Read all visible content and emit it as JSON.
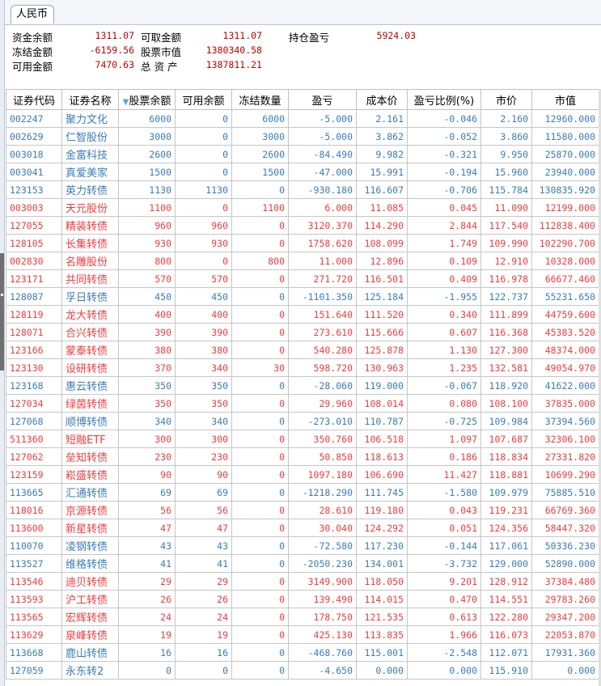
{
  "tab": {
    "label": "人民币"
  },
  "summary": [
    {
      "label": "资金余额",
      "value": "1311.07"
    },
    {
      "label": "冻结金额",
      "value": "-6159.56"
    },
    {
      "label": "可用金额",
      "value": "7470.63"
    },
    {
      "label": "可取金额",
      "value": "1311.07"
    },
    {
      "label": "股票市值",
      "value": "1380340.58"
    },
    {
      "label": "总 资 产",
      "value": "1387811.21"
    },
    {
      "label": "持仓盈亏",
      "value": "5924.03"
    }
  ],
  "colors": {
    "up": "#f03c3c",
    "down": "#3a7cb8",
    "summary_value": "#c00000"
  },
  "table": {
    "sort_icon": "triangle-down",
    "columns": [
      "证券代码",
      "证券名称",
      "股票余额",
      "可用余额",
      "冻结数量",
      "盈亏",
      "成本价",
      "盈亏比例(%)",
      "市价",
      "市值"
    ],
    "rows": [
      [
        "002247",
        "聚力文化",
        "6000",
        "0",
        "6000",
        "-5.000",
        "2.161",
        "-0.046",
        "2.160",
        "12960.000"
      ],
      [
        "002629",
        "仁智股份",
        "3000",
        "0",
        "3000",
        "-5.000",
        "3.862",
        "-0.052",
        "3.860",
        "11580.000"
      ],
      [
        "003018",
        "金富科技",
        "2600",
        "0",
        "2600",
        "-84.490",
        "9.982",
        "-0.321",
        "9.950",
        "25870.000"
      ],
      [
        "003041",
        "真爱美家",
        "1500",
        "0",
        "1500",
        "-47.000",
        "15.991",
        "-0.194",
        "15.960",
        "23940.000"
      ],
      [
        "123153",
        "英力转债",
        "1130",
        "1130",
        "0",
        "-930.180",
        "116.607",
        "-0.706",
        "115.784",
        "130835.920"
      ],
      [
        "003003",
        "天元股份",
        "1100",
        "0",
        "1100",
        "6.000",
        "11.085",
        "0.045",
        "11.090",
        "12199.000"
      ],
      [
        "127055",
        "精装转债",
        "960",
        "960",
        "0",
        "3120.370",
        "114.290",
        "2.844",
        "117.540",
        "112838.400"
      ],
      [
        "128105",
        "长集转债",
        "930",
        "930",
        "0",
        "1758.620",
        "108.099",
        "1.749",
        "109.990",
        "102290.700"
      ],
      [
        "002830",
        "名雕股份",
        "800",
        "0",
        "800",
        "11.000",
        "12.896",
        "0.109",
        "12.910",
        "10328.000"
      ],
      [
        "123171",
        "共同转债",
        "570",
        "570",
        "0",
        "271.720",
        "116.501",
        "0.409",
        "116.978",
        "66677.460"
      ],
      [
        "128087",
        "孚日转债",
        "450",
        "450",
        "0",
        "-1101.350",
        "125.184",
        "-1.955",
        "122.737",
        "55231.650"
      ],
      [
        "128119",
        "龙大转债",
        "400",
        "400",
        "0",
        "151.640",
        "111.520",
        "0.340",
        "111.899",
        "44759.600"
      ],
      [
        "128071",
        "合兴转债",
        "390",
        "390",
        "0",
        "273.610",
        "115.666",
        "0.607",
        "116.368",
        "45383.520"
      ],
      [
        "123166",
        "蒙泰转债",
        "380",
        "380",
        "0",
        "540.280",
        "125.878",
        "1.130",
        "127.300",
        "48374.000"
      ],
      [
        "123130",
        "设研转债",
        "370",
        "340",
        "30",
        "598.720",
        "130.963",
        "1.235",
        "132.581",
        "49054.970"
      ],
      [
        "123168",
        "惠云转债",
        "350",
        "350",
        "0",
        "-28.060",
        "119.000",
        "-0.067",
        "118.920",
        "41622.000"
      ],
      [
        "127034",
        "绿茵转债",
        "350",
        "350",
        "0",
        "29.960",
        "108.014",
        "0.080",
        "108.100",
        "37835.000"
      ],
      [
        "127068",
        "顺博转债",
        "340",
        "340",
        "0",
        "-273.010",
        "110.787",
        "-0.725",
        "109.984",
        "37394.560"
      ],
      [
        "511360",
        "短融ETF",
        "300",
        "300",
        "0",
        "350.760",
        "106.518",
        "1.097",
        "107.687",
        "32306.100"
      ],
      [
        "127062",
        "垒知转债",
        "230",
        "230",
        "0",
        "50.850",
        "118.613",
        "0.186",
        "118.834",
        "27331.820"
      ],
      [
        "123159",
        "崧盛转债",
        "90",
        "90",
        "0",
        "1097.180",
        "106.690",
        "11.427",
        "118.881",
        "10699.290"
      ],
      [
        "113665",
        "汇通转债",
        "69",
        "69",
        "0",
        "-1218.290",
        "111.745",
        "-1.580",
        "109.979",
        "75885.510"
      ],
      [
        "118016",
        "京源转债",
        "56",
        "56",
        "0",
        "28.610",
        "119.180",
        "0.043",
        "119.231",
        "66769.360"
      ],
      [
        "113600",
        "新星转债",
        "47",
        "47",
        "0",
        "30.040",
        "124.292",
        "0.051",
        "124.356",
        "58447.320"
      ],
      [
        "110070",
        "凌钢转债",
        "43",
        "43",
        "0",
        "-72.580",
        "117.230",
        "-0.144",
        "117.061",
        "50336.230"
      ],
      [
        "113527",
        "维格转债",
        "41",
        "41",
        "0",
        "-2050.230",
        "134.001",
        "-3.732",
        "129.000",
        "52890.000"
      ],
      [
        "113546",
        "迪贝转债",
        "29",
        "29",
        "0",
        "3149.900",
        "118.050",
        "9.201",
        "128.912",
        "37384.480"
      ],
      [
        "113593",
        "沪工转债",
        "26",
        "26",
        "0",
        "139.490",
        "114.015",
        "0.470",
        "114.551",
        "29783.260"
      ],
      [
        "113565",
        "宏辉转债",
        "24",
        "24",
        "0",
        "178.750",
        "121.535",
        "0.613",
        "122.280",
        "29347.200"
      ],
      [
        "113629",
        "泉峰转债",
        "19",
        "19",
        "0",
        "425.130",
        "113.835",
        "1.966",
        "116.073",
        "22053.870"
      ],
      [
        "113668",
        "鹿山转债",
        "16",
        "16",
        "0",
        "-468.760",
        "115.001",
        "-2.548",
        "112.071",
        "17931.360"
      ],
      [
        "127059",
        "永东转2",
        "0",
        "0",
        "0",
        "-4.650",
        "0.000",
        "0.000",
        "115.910",
        "0.000"
      ]
    ]
  }
}
